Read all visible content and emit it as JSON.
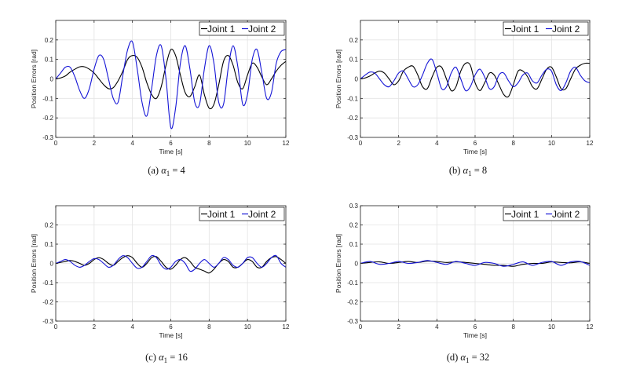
{
  "chart_data": [
    {
      "type": "line",
      "caption": {
        "label": "(a)",
        "var": "α",
        "sub": "1",
        "rest": " = 4"
      },
      "xlabel": "Time [s]",
      "ylabel": "Position Errors [rad]",
      "xlim": [
        0,
        12
      ],
      "ylim": [
        -0.3,
        0.3
      ],
      "xticks": [
        0,
        2,
        4,
        6,
        8,
        10,
        12
      ],
      "yticks": [
        -0.3,
        -0.2,
        -0.1,
        0,
        0.1,
        0.2
      ],
      "ytick_labels": [
        "-0.3",
        "-0.2",
        "-0.1",
        "0",
        "0.1",
        "0.2"
      ],
      "grid": true,
      "legend": "top-right",
      "series": [
        {
          "name": "Joint 1",
          "color": "#000000",
          "x": [
            0,
            0.25,
            0.5,
            0.75,
            1,
            1.25,
            1.5,
            1.75,
            2,
            2.25,
            2.5,
            2.75,
            3,
            3.25,
            3.5,
            3.75,
            4,
            4.25,
            4.5,
            4.75,
            5,
            5.25,
            5.5,
            5.75,
            6,
            6.25,
            6.5,
            6.75,
            7,
            7.25,
            7.5,
            7.75,
            8,
            8.25,
            8.5,
            8.75,
            9,
            9.25,
            9.5,
            9.75,
            10,
            10.25,
            10.5,
            10.75,
            11,
            11.25,
            11.5,
            11.75,
            12
          ],
          "y": [
            0,
            0.005,
            0.015,
            0.035,
            0.05,
            0.062,
            0.062,
            0.05,
            0.03,
            0,
            -0.03,
            -0.05,
            -0.045,
            -0.01,
            0.04,
            0.1,
            0.12,
            0.11,
            0.06,
            -0.02,
            -0.08,
            -0.1,
            -0.04,
            0.07,
            0.15,
            0.12,
            0.02,
            -0.07,
            -0.09,
            -0.04,
            0.02,
            -0.08,
            -0.15,
            -0.13,
            -0.03,
            0.09,
            0.12,
            0.07,
            -0.02,
            -0.05,
            0.02,
            0.08,
            0.06,
            0.01,
            -0.03,
            0.0,
            0.04,
            0.07,
            0.09
          ]
        },
        {
          "name": "Joint 2",
          "color": "#1515d6",
          "x": [
            0,
            0.25,
            0.5,
            0.75,
            1,
            1.25,
            1.5,
            1.75,
            2,
            2.25,
            2.5,
            2.75,
            3,
            3.25,
            3.5,
            3.75,
            4,
            4.25,
            4.5,
            4.75,
            5,
            5.25,
            5.5,
            5.75,
            6,
            6.25,
            6.5,
            6.75,
            7,
            7.25,
            7.5,
            7.75,
            8,
            8.25,
            8.5,
            8.75,
            9,
            9.25,
            9.5,
            9.75,
            10,
            10.25,
            10.5,
            10.75,
            11,
            11.25,
            11.5,
            11.75,
            12
          ],
          "y": [
            0,
            0.03,
            0.06,
            0.06,
            0.01,
            -0.06,
            -0.1,
            -0.05,
            0.05,
            0.12,
            0.1,
            0.0,
            -0.1,
            -0.12,
            0.02,
            0.15,
            0.19,
            0.05,
            -0.12,
            -0.19,
            -0.05,
            0.12,
            0.17,
            0.0,
            -0.25,
            -0.15,
            0.08,
            0.17,
            0.05,
            -0.12,
            -0.13,
            0.05,
            0.17,
            0.08,
            -0.12,
            -0.13,
            0.06,
            0.17,
            0.06,
            -0.13,
            -0.08,
            0.1,
            0.15,
            0.03,
            -0.1,
            -0.07,
            0.08,
            0.14,
            0.15
          ]
        }
      ]
    },
    {
      "type": "line",
      "caption": {
        "label": "(b)",
        "var": "α",
        "sub": "1",
        "rest": " = 8"
      },
      "xlabel": "Time [s]",
      "ylabel": "Position Errors [rad]",
      "xlim": [
        0,
        12
      ],
      "ylim": [
        -0.3,
        0.3
      ],
      "xticks": [
        0,
        2,
        4,
        6,
        8,
        10,
        12
      ],
      "yticks": [
        -0.3,
        -0.2,
        -0.1,
        0,
        0.1,
        0.2
      ],
      "ytick_labels": [
        "-0.3",
        "-0.2",
        "-0.1",
        "0",
        "0.1",
        "0.2"
      ],
      "grid": true,
      "legend": "top-right",
      "series": [
        {
          "name": "Joint 1",
          "color": "#000000",
          "x": [
            0,
            0.25,
            0.5,
            0.75,
            1,
            1.25,
            1.5,
            1.75,
            2,
            2.25,
            2.5,
            2.75,
            3,
            3.25,
            3.5,
            3.75,
            4,
            4.25,
            4.5,
            4.75,
            5,
            5.25,
            5.5,
            5.75,
            6,
            6.25,
            6.5,
            6.75,
            7,
            7.25,
            7.5,
            7.75,
            8,
            8.25,
            8.5,
            8.75,
            9,
            9.25,
            9.5,
            9.75,
            10,
            10.25,
            10.5,
            10.75,
            11,
            11.25,
            11.5,
            11.75,
            12
          ],
          "y": [
            0,
            0.005,
            0.015,
            0.03,
            0.04,
            0.03,
            0.0,
            -0.03,
            -0.01,
            0.04,
            0.06,
            0.065,
            0.02,
            -0.04,
            -0.05,
            0.01,
            0.06,
            0.06,
            0.0,
            -0.06,
            -0.04,
            0.04,
            0.08,
            0.07,
            -0.02,
            -0.06,
            -0.02,
            0.03,
            0.02,
            -0.03,
            -0.08,
            -0.09,
            -0.03,
            0.04,
            0.04,
            0.01,
            -0.04,
            -0.05,
            0.0,
            0.05,
            0.06,
            0.01,
            -0.05,
            -0.05,
            0.0,
            0.05,
            0.07,
            0.08,
            0.08
          ]
        },
        {
          "name": "Joint 2",
          "color": "#1515d6",
          "x": [
            0,
            0.25,
            0.5,
            0.75,
            1,
            1.25,
            1.5,
            1.75,
            2,
            2.25,
            2.5,
            2.75,
            3,
            3.25,
            3.5,
            3.75,
            4,
            4.25,
            4.5,
            4.75,
            5,
            5.25,
            5.5,
            5.75,
            6,
            6.25,
            6.5,
            6.75,
            7,
            7.25,
            7.5,
            7.75,
            8,
            8.25,
            8.5,
            8.75,
            9,
            9.25,
            9.5,
            9.75,
            10,
            10.25,
            10.5,
            10.75,
            11,
            11.25,
            11.5,
            11.75,
            12
          ],
          "y": [
            0,
            0.02,
            0.035,
            0.03,
            0.0,
            -0.03,
            -0.04,
            -0.01,
            0.03,
            0.04,
            0.0,
            -0.04,
            -0.03,
            0.02,
            0.08,
            0.1,
            0.03,
            -0.05,
            -0.04,
            0.03,
            0.06,
            0.0,
            -0.06,
            -0.04,
            0.02,
            0.05,
            0.01,
            -0.05,
            -0.04,
            0.02,
            0.03,
            -0.01,
            -0.04,
            -0.02,
            0.02,
            0.03,
            -0.01,
            -0.02,
            0.02,
            0.05,
            0.04,
            -0.03,
            -0.06,
            -0.02,
            0.04,
            0.06,
            0.02,
            -0.01,
            -0.02
          ]
        }
      ]
    },
    {
      "type": "line",
      "caption": {
        "label": "(c)",
        "var": "α",
        "sub": "1",
        "rest": " = 16"
      },
      "xlabel": "Time [s]",
      "ylabel": "Position Errors [rad]",
      "xlim": [
        0,
        12
      ],
      "ylim": [
        -0.3,
        0.3
      ],
      "xticks": [
        0,
        2,
        4,
        6,
        8,
        10,
        12
      ],
      "yticks": [
        -0.3,
        -0.2,
        -0.1,
        0,
        0.1,
        0.2
      ],
      "ytick_labels": [
        "-0.3",
        "-0.2",
        "-0.1",
        "0",
        "0.1",
        "0.2"
      ],
      "grid": true,
      "legend": "top-right",
      "series": [
        {
          "name": "Joint 1",
          "color": "#000000",
          "x": [
            0,
            0.25,
            0.5,
            0.75,
            1,
            1.25,
            1.5,
            1.75,
            2,
            2.25,
            2.5,
            2.75,
            3,
            3.25,
            3.5,
            3.75,
            4,
            4.25,
            4.5,
            4.75,
            5,
            5.25,
            5.5,
            5.75,
            6,
            6.25,
            6.5,
            6.75,
            7,
            7.25,
            7.5,
            7.75,
            8,
            8.25,
            8.5,
            8.75,
            9,
            9.25,
            9.5,
            9.75,
            10,
            10.25,
            10.5,
            10.75,
            11,
            11.25,
            11.5,
            11.75,
            12
          ],
          "y": [
            0,
            0.005,
            0.01,
            0.015,
            0.01,
            0.0,
            -0.01,
            0.0,
            0.02,
            0.03,
            0.02,
            0.0,
            -0.01,
            0.01,
            0.03,
            0.04,
            0.03,
            0.0,
            -0.02,
            0.0,
            0.03,
            0.035,
            0.01,
            -0.02,
            -0.03,
            -0.01,
            0.02,
            0.03,
            0.01,
            -0.02,
            -0.03,
            -0.04,
            -0.05,
            -0.03,
            0.0,
            0.02,
            0.01,
            -0.02,
            -0.02,
            0.0,
            0.02,
            0.01,
            -0.02,
            -0.02,
            0.01,
            0.03,
            0.035,
            0.02,
            0.0
          ]
        },
        {
          "name": "Joint 2",
          "color": "#1515d6",
          "x": [
            0,
            0.25,
            0.5,
            0.75,
            1,
            1.25,
            1.5,
            1.75,
            2,
            2.25,
            2.5,
            2.75,
            3,
            3.25,
            3.5,
            3.75,
            4,
            4.25,
            4.5,
            4.75,
            5,
            5.25,
            5.5,
            5.75,
            6,
            6.25,
            6.5,
            6.75,
            7,
            7.25,
            7.5,
            7.75,
            8,
            8.25,
            8.5,
            8.75,
            9,
            9.25,
            9.5,
            9.75,
            10,
            10.25,
            10.5,
            10.75,
            11,
            11.25,
            11.5,
            11.75,
            12
          ],
          "y": [
            0,
            0.01,
            0.02,
            0.01,
            -0.01,
            -0.02,
            -0.01,
            0.01,
            0.025,
            0.02,
            0.0,
            -0.02,
            -0.01,
            0.02,
            0.04,
            0.03,
            0.0,
            -0.025,
            -0.02,
            0.01,
            0.04,
            0.03,
            -0.01,
            -0.03,
            -0.02,
            0.01,
            0.02,
            0.0,
            -0.04,
            -0.03,
            0.0,
            0.02,
            0.0,
            -0.02,
            0.0,
            0.03,
            0.02,
            -0.01,
            -0.02,
            0.0,
            0.03,
            0.03,
            0.0,
            -0.02,
            0.0,
            0.03,
            0.04,
            0.0,
            -0.02
          ]
        }
      ]
    },
    {
      "type": "line",
      "caption": {
        "label": "(d)",
        "var": "α",
        "sub": "1",
        "rest": " = 32"
      },
      "xlabel": "Time [s]",
      "ylabel": "Position Errors [rad]",
      "xlim": [
        0,
        12
      ],
      "ylim": [
        -0.3,
        0.3
      ],
      "xticks": [
        0,
        2,
        4,
        6,
        8,
        10,
        12
      ],
      "yticks": [
        -0.3,
        -0.2,
        -0.1,
        0,
        0.1,
        0.2,
        0.3
      ],
      "ytick_labels": [
        "-0.3",
        "-0.2",
        "-0.1",
        "0",
        "0.1",
        "0.2",
        "0.3"
      ],
      "grid": true,
      "legend": "top-right",
      "series": [
        {
          "name": "Joint 1",
          "color": "#000000",
          "x": [
            0,
            0.5,
            1,
            1.5,
            2,
            2.5,
            3,
            3.5,
            4,
            4.5,
            5,
            5.5,
            6,
            6.5,
            7,
            7.5,
            8,
            8.5,
            9,
            9.5,
            10,
            10.5,
            11,
            11.5,
            12
          ],
          "y": [
            0,
            0.005,
            0.008,
            0.0,
            0.005,
            0.01,
            0.005,
            0.012,
            0.01,
            0.005,
            0.008,
            0.005,
            0.0,
            -0.005,
            -0.01,
            -0.01,
            -0.015,
            -0.005,
            0.0,
            0.0,
            0.008,
            0.005,
            0.003,
            0.008,
            0.0
          ]
        },
        {
          "name": "Joint 2",
          "color": "#1515d6",
          "x": [
            0,
            0.5,
            1,
            1.5,
            2,
            2.5,
            3,
            3.5,
            4,
            4.5,
            5,
            5.5,
            6,
            6.5,
            7,
            7.5,
            8,
            8.5,
            9,
            9.5,
            10,
            10.5,
            11,
            11.5,
            12
          ],
          "y": [
            0,
            0.01,
            -0.005,
            0.0,
            0.01,
            0.0,
            0.005,
            0.015,
            0.005,
            -0.005,
            0.01,
            0.0,
            -0.01,
            0.005,
            0.0,
            -0.015,
            -0.005,
            0.008,
            -0.01,
            0.005,
            0.01,
            -0.01,
            0.008,
            0.01,
            -0.01
          ]
        }
      ]
    }
  ]
}
